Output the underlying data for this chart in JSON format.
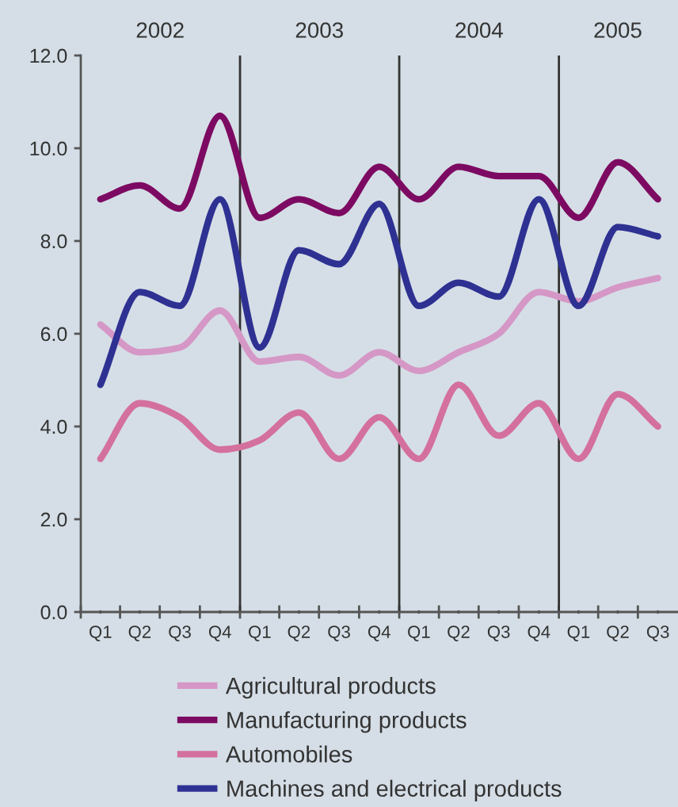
{
  "chart_data": {
    "type": "line",
    "x": [
      "2002-02-15",
      "2002-05-16",
      "2002-08-16",
      "2002-11-16",
      "2003-02-15",
      "2003-05-16",
      "2003-08-16",
      "2003-11-16",
      "2004-02-15",
      "2004-05-16",
      "2004-08-16",
      "2004-11-16",
      "2005-02-15",
      "2005-05-16",
      "2005-08-16"
    ],
    "series": [
      {
        "name": "Agricultural products",
        "color": "#d597c6",
        "values": [
          6.2,
          5.6,
          5.7,
          6.5,
          5.4,
          5.5,
          5.1,
          5.6,
          5.2,
          5.6,
          6.0,
          6.9,
          6.7,
          7.0,
          7.2
        ]
      },
      {
        "name": "Manufacturing products",
        "color": "#7d0a62",
        "values": [
          8.9,
          9.2,
          8.7,
          10.7,
          8.5,
          8.9,
          8.6,
          9.6,
          8.9,
          9.6,
          9.4,
          9.4,
          8.5,
          9.7,
          8.9
        ]
      },
      {
        "name": "Automobiles",
        "color": "#d4709d",
        "values": [
          3.3,
          4.5,
          4.2,
          3.5,
          3.7,
          4.3,
          3.3,
          4.2,
          3.3,
          4.9,
          3.8,
          4.5,
          3.3,
          4.7,
          4.0
        ]
      },
      {
        "name": "Machines and electrical products",
        "color": "#2e3192",
        "values": [
          4.9,
          6.9,
          6.6,
          8.9,
          5.7,
          7.8,
          7.5,
          8.8,
          6.6,
          7.1,
          6.8,
          8.9,
          6.6,
          8.3,
          8.1
        ]
      }
    ],
    "xlim": [
      "2002-01-01",
      "2005-10-01"
    ],
    "xticks": [
      {
        "value": "2002-01-01",
        "label": null
      },
      {
        "value": "2002-02-15",
        "label": "Q1"
      },
      {
        "value": "2002-04-01",
        "label": null
      },
      {
        "value": "2002-05-16",
        "label": "Q2"
      },
      {
        "value": "2002-07-01",
        "label": null
      },
      {
        "value": "2002-08-16",
        "label": "Q3"
      },
      {
        "value": "2002-10-01",
        "label": null
      },
      {
        "value": "2002-11-16",
        "label": "Q4"
      },
      {
        "value": "2003-01-01",
        "label": null
      },
      {
        "value": "2003-02-15",
        "label": "Q1"
      },
      {
        "value": "2003-04-01",
        "label": null
      },
      {
        "value": "2003-05-16",
        "label": "Q2"
      },
      {
        "value": "2003-07-01",
        "label": null
      },
      {
        "value": "2003-08-16",
        "label": "Q3"
      },
      {
        "value": "2003-10-01",
        "label": null
      },
      {
        "value": "2003-11-16",
        "label": "Q4"
      },
      {
        "value": "2004-01-01",
        "label": null
      },
      {
        "value": "2004-02-15",
        "label": "Q1"
      },
      {
        "value": "2004-04-01",
        "label": null
      },
      {
        "value": "2004-05-16",
        "label": "Q2"
      },
      {
        "value": "2004-07-01",
        "label": null
      },
      {
        "value": "2004-08-16",
        "label": "Q3"
      },
      {
        "value": "2004-10-01",
        "label": null
      },
      {
        "value": "2004-11-16",
        "label": "Q4"
      },
      {
        "value": "2005-01-01",
        "label": null
      },
      {
        "value": "2005-02-15",
        "label": "Q1"
      },
      {
        "value": "2005-04-01",
        "label": null
      },
      {
        "value": "2005-05-16",
        "label": "Q2"
      },
      {
        "value": "2005-07-01",
        "label": null
      },
      {
        "value": "2005-08-16",
        "label": "Q3"
      }
    ],
    "x2lim": [
      "2002-01-01",
      "2005-10-01"
    ],
    "x2ticks": [
      {
        "value": "2002-07-02",
        "label": "2002"
      },
      {
        "value": "2003-07-02",
        "label": "2003"
      },
      {
        "value": "2004-07-02",
        "label": "2004"
      },
      {
        "value": "2005-05-16",
        "label": "2005"
      }
    ],
    "ylim": [
      0,
      12
    ],
    "yticks": [
      {
        "value": 0,
        "label": "0.0"
      },
      {
        "value": 2,
        "label": "2.0"
      },
      {
        "value": 4,
        "label": "4.0"
      },
      {
        "value": 6,
        "label": "6.0"
      },
      {
        "value": 8,
        "label": "8.0"
      },
      {
        "value": 10,
        "label": "10.0"
      },
      {
        "value": 12,
        "label": "12.0"
      }
    ],
    "ref_lines": [
      {
        "axis": "x",
        "value": "2003-01-01",
        "color": "#333333"
      },
      {
        "axis": "x",
        "value": "2004-01-01",
        "color": "#333333"
      },
      {
        "axis": "x",
        "value": "2005-01-01",
        "color": "#333333"
      }
    ],
    "legend": "bottom",
    "marker": "none",
    "line_style": "solid"
  }
}
